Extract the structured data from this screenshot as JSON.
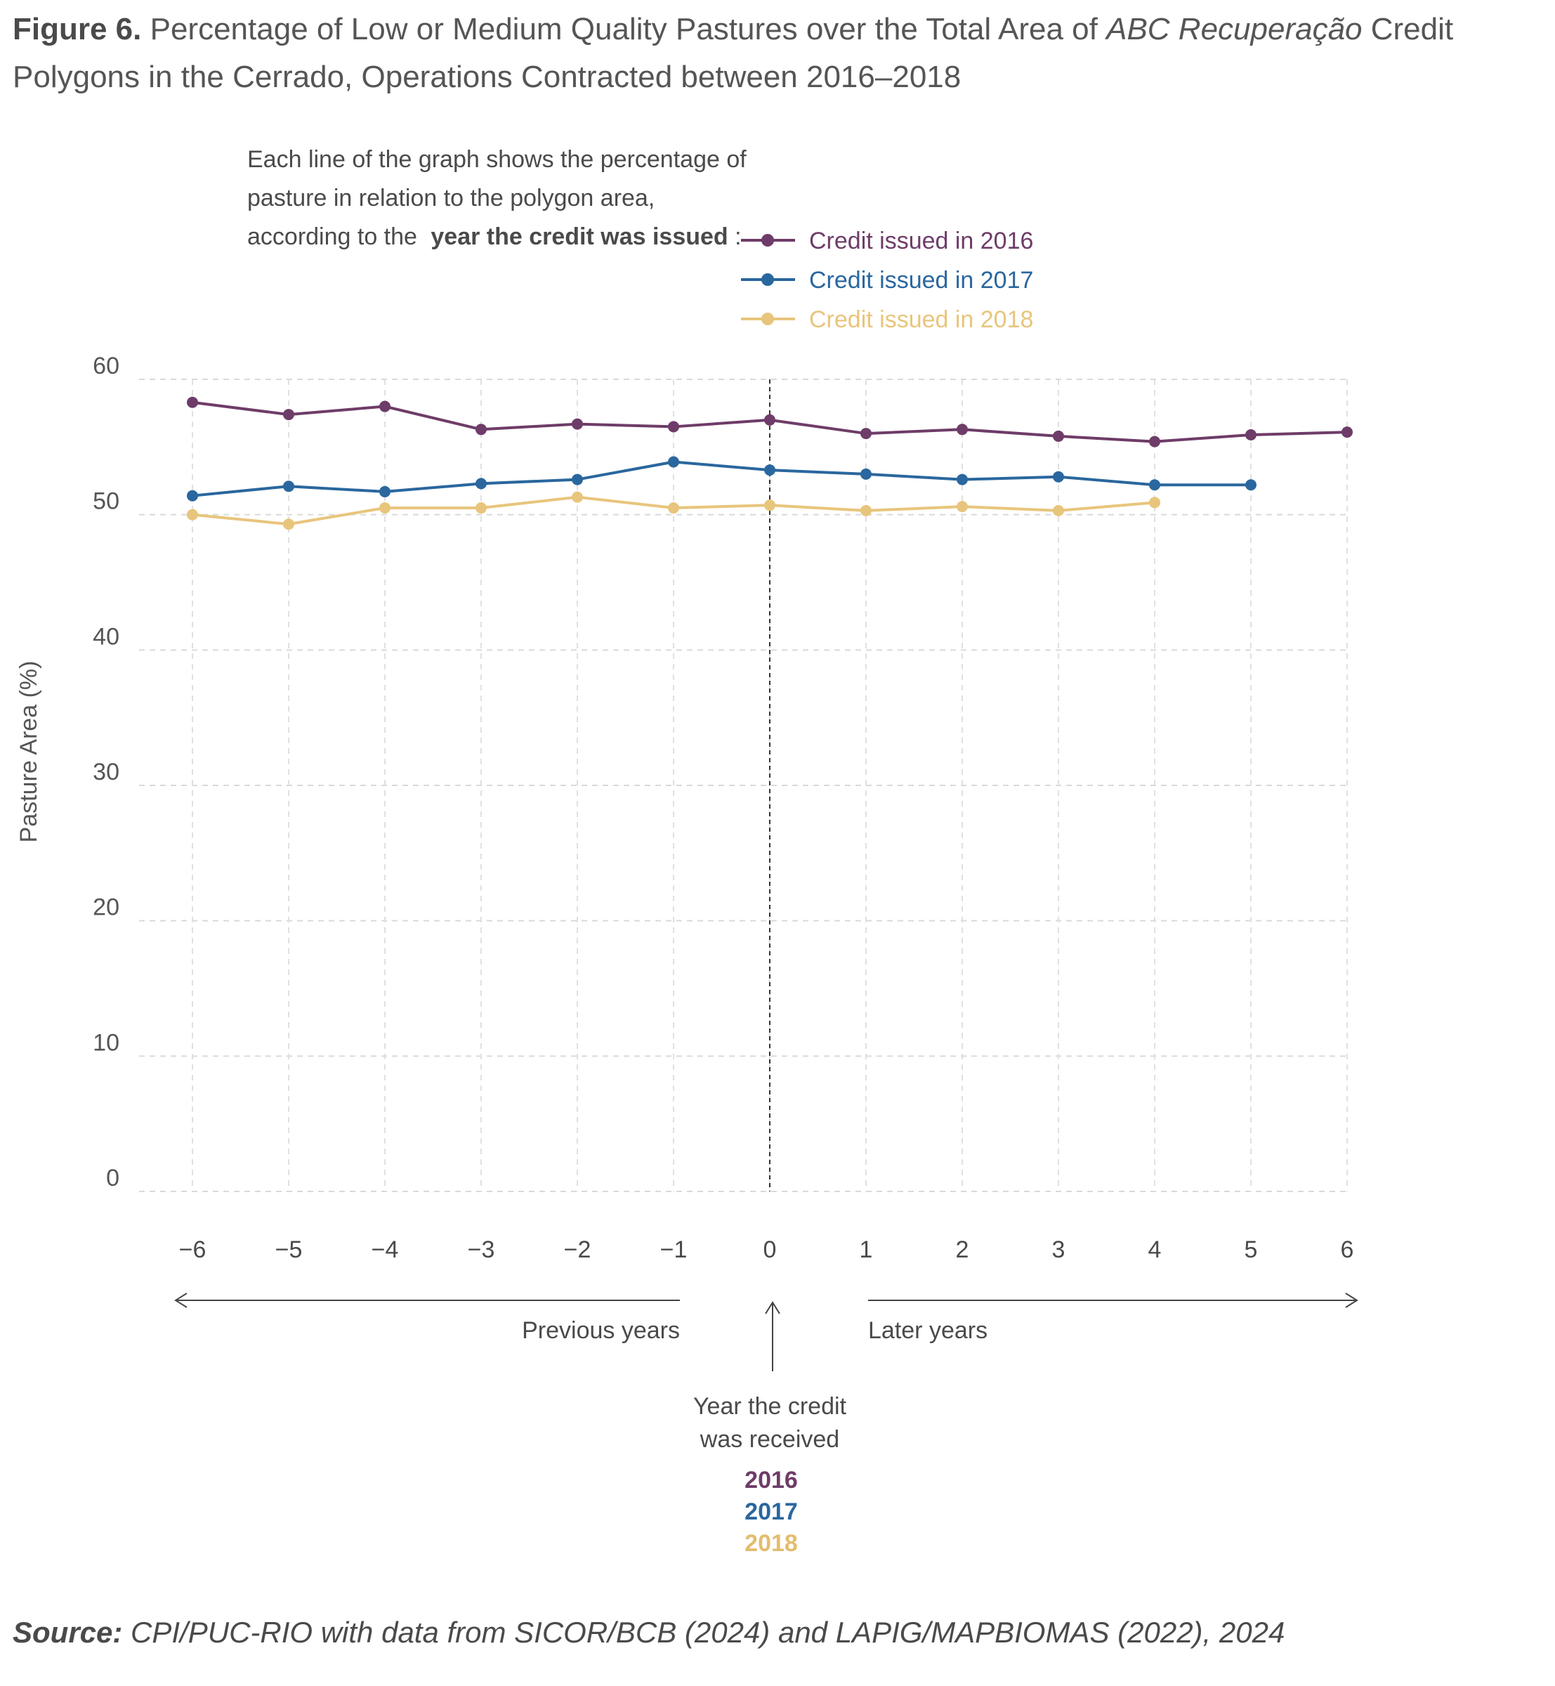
{
  "figure": {
    "label": "Figure 6.",
    "title_a": "Percentage of Low or Medium Quality Pastures over the Total Area of",
    "title_italic": "ABC Recuperação",
    "title_b": "Credit Polygons in the Cerrado, Operations Contracted between 2016–2018"
  },
  "legend_intro": {
    "line1": "Each line of the graph shows the percentage of",
    "line2": "pasture in relation to the polygon area,",
    "line3_a": "according to the",
    "line3_bold": "year the credit was issued",
    "line3_b": ":"
  },
  "annotations": {
    "previous_years": "Previous years",
    "later_years": "Later years",
    "credit_year_line1": "Year the credit",
    "credit_year_line2": "was received",
    "year_2016": "2016",
    "year_2017": "2017",
    "year_2018": "2018"
  },
  "source": {
    "label": "Source:",
    "text": "CPI/PUC-RIO with data from SICOR/BCB (2024) and LAPIG/MAPBIOMAS (2022), 2024"
  },
  "chart_data": {
    "type": "line",
    "ylabel": "Pasture Area (%)",
    "xlabel": "",
    "xlim": [
      -6,
      6
    ],
    "ylim": [
      0,
      60
    ],
    "yticks": [
      0,
      10,
      20,
      30,
      40,
      50,
      60
    ],
    "xticks": [
      -6,
      -5,
      -4,
      -3,
      -2,
      -1,
      0,
      1,
      2,
      3,
      4,
      5,
      6
    ],
    "xtick_labels": [
      "−6",
      "−5",
      "−4",
      "−3",
      "−2",
      "−1",
      "0",
      "1",
      "2",
      "3",
      "4",
      "5",
      "6"
    ],
    "grid": true,
    "reference_line_x": 0,
    "legend_position": "top",
    "series": [
      {
        "name": "Credit issued in 2016",
        "color": "#6e3c68",
        "x": [
          -6,
          -5,
          -4,
          -3,
          -2,
          -1,
          0,
          1,
          2,
          3,
          4,
          5,
          6
        ],
        "y": [
          58.3,
          57.4,
          58.0,
          56.3,
          56.7,
          56.5,
          57.0,
          56.0,
          56.3,
          55.8,
          55.4,
          55.9,
          56.1
        ]
      },
      {
        "name": "Credit issued in 2017",
        "color": "#2a679e",
        "x": [
          -6,
          -5,
          -4,
          -3,
          -2,
          -1,
          0,
          1,
          2,
          3,
          4,
          5
        ],
        "y": [
          51.4,
          52.1,
          51.7,
          52.3,
          52.6,
          53.9,
          53.3,
          53.0,
          52.6,
          52.8,
          52.2,
          52.2
        ]
      },
      {
        "name": "Credit issued in 2018",
        "color": "#e8c57c",
        "x": [
          -6,
          -5,
          -4,
          -3,
          -2,
          -1,
          0,
          1,
          2,
          3,
          4
        ],
        "y": [
          50.0,
          49.3,
          50.5,
          50.5,
          51.3,
          50.5,
          50.7,
          50.3,
          50.6,
          50.3,
          50.9
        ]
      }
    ]
  }
}
